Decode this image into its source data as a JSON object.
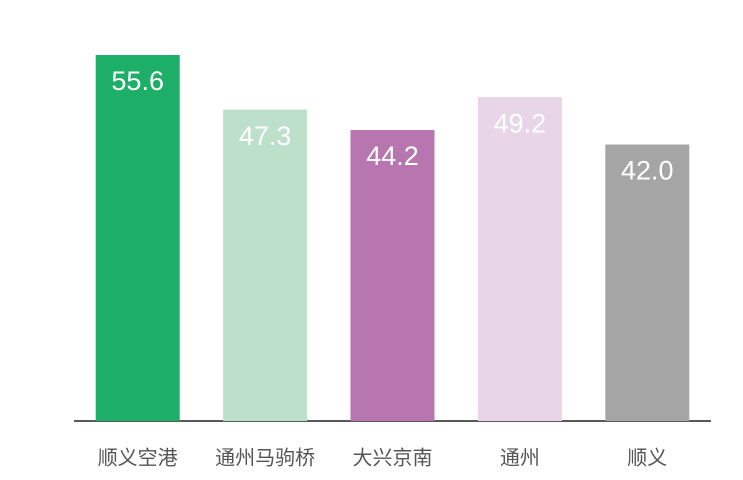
{
  "chart_data": {
    "type": "bar",
    "categories": [
      "顺义空港",
      "通州马驹桥",
      "大兴京南",
      "通州",
      "顺义"
    ],
    "values": [
      55.6,
      47.3,
      44.2,
      49.2,
      42.0
    ],
    "value_labels": [
      "55.6",
      "47.3",
      "44.2",
      "49.2",
      "42.0"
    ],
    "colors": [
      "#1daf68",
      "#bde0cb",
      "#b776b0",
      "#e8d5e8",
      "#a5a5a5"
    ]
  }
}
